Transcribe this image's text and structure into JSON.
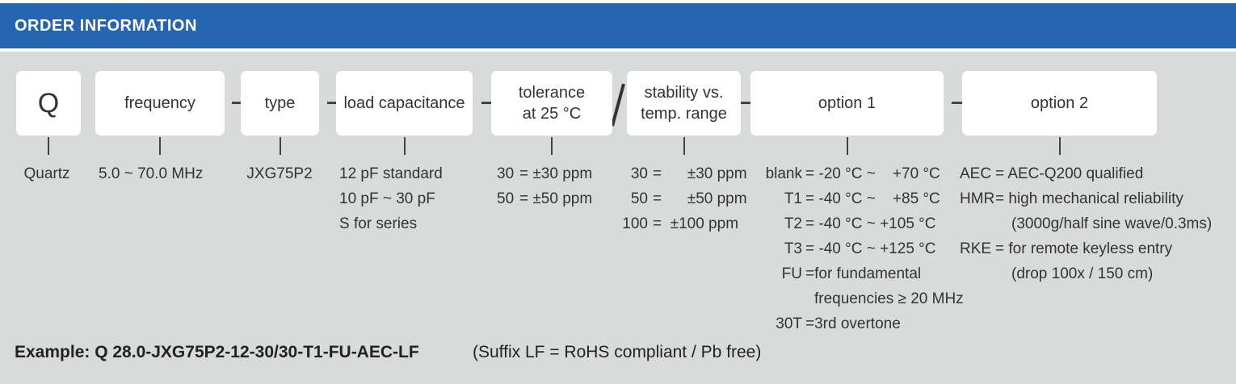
{
  "header": {
    "title": "ORDER INFORMATION"
  },
  "fields": [
    {
      "label": [
        "Q"
      ],
      "details": [
        {
          "text": "Quartz"
        }
      ]
    },
    {
      "label": [
        "frequency"
      ],
      "details": [
        {
          "text": "5.0 ~ 70.0 MHz"
        }
      ]
    },
    {
      "label": [
        "type"
      ],
      "details": [
        {
          "text": "JXG75P2"
        }
      ]
    },
    {
      "label": [
        "load capacitance"
      ],
      "details": [
        {
          "text": "12 pF standard"
        },
        {
          "text": "10 pF ~ 30 pF"
        },
        {
          "text": "S for series"
        }
      ]
    },
    {
      "label": [
        "tolerance",
        "at 25 °C"
      ],
      "details": [
        {
          "code": "30",
          "text": "= ±30 ppm"
        },
        {
          "code": "50",
          "text": "= ±50 ppm"
        }
      ]
    },
    {
      "label": [
        "stability vs.",
        "temp. range"
      ],
      "details": [
        {
          "code": "30",
          "text": "=      ±30 ppm"
        },
        {
          "code": "50",
          "text": "=      ±50 ppm"
        },
        {
          "code": "100",
          "text": "=  ±100 ppm"
        }
      ]
    },
    {
      "label": [
        "option 1"
      ],
      "details": [
        {
          "code": "blank",
          "text": "= -20 °C ~    +70 °C"
        },
        {
          "code": "T1",
          "text": "= -40 °C ~    +85 °C"
        },
        {
          "code": "T2",
          "text": "= -40 °C ~ +105 °C"
        },
        {
          "code": "T3",
          "text": "= -40 °C ~ +125 °C"
        },
        {
          "code": "FU",
          "text": "=for fundamental"
        },
        {
          "text": "frequencies ≥ 20 MHz"
        },
        {
          "code": "30T",
          "text": "=3rd overtone"
        }
      ]
    },
    {
      "label": [
        "option 2"
      ],
      "details": [
        {
          "code": "AEC",
          "text": "= AEC-Q200 qualified"
        },
        {
          "code": "HMR",
          "text": "= high mechanical reliability"
        },
        {
          "text": "(3000g/half sine wave/0.3ms)"
        },
        {
          "code": "RKE",
          "text": "= for remote keyless entry"
        },
        {
          "text": "(drop 100x / 150 cm)"
        }
      ]
    }
  ],
  "example": {
    "label": "Example: Q 28.0-JXG75P2-12-30/30-T1-FU-AEC-LF",
    "note": "(Suffix LF = RoHS compliant / Pb free)"
  }
}
